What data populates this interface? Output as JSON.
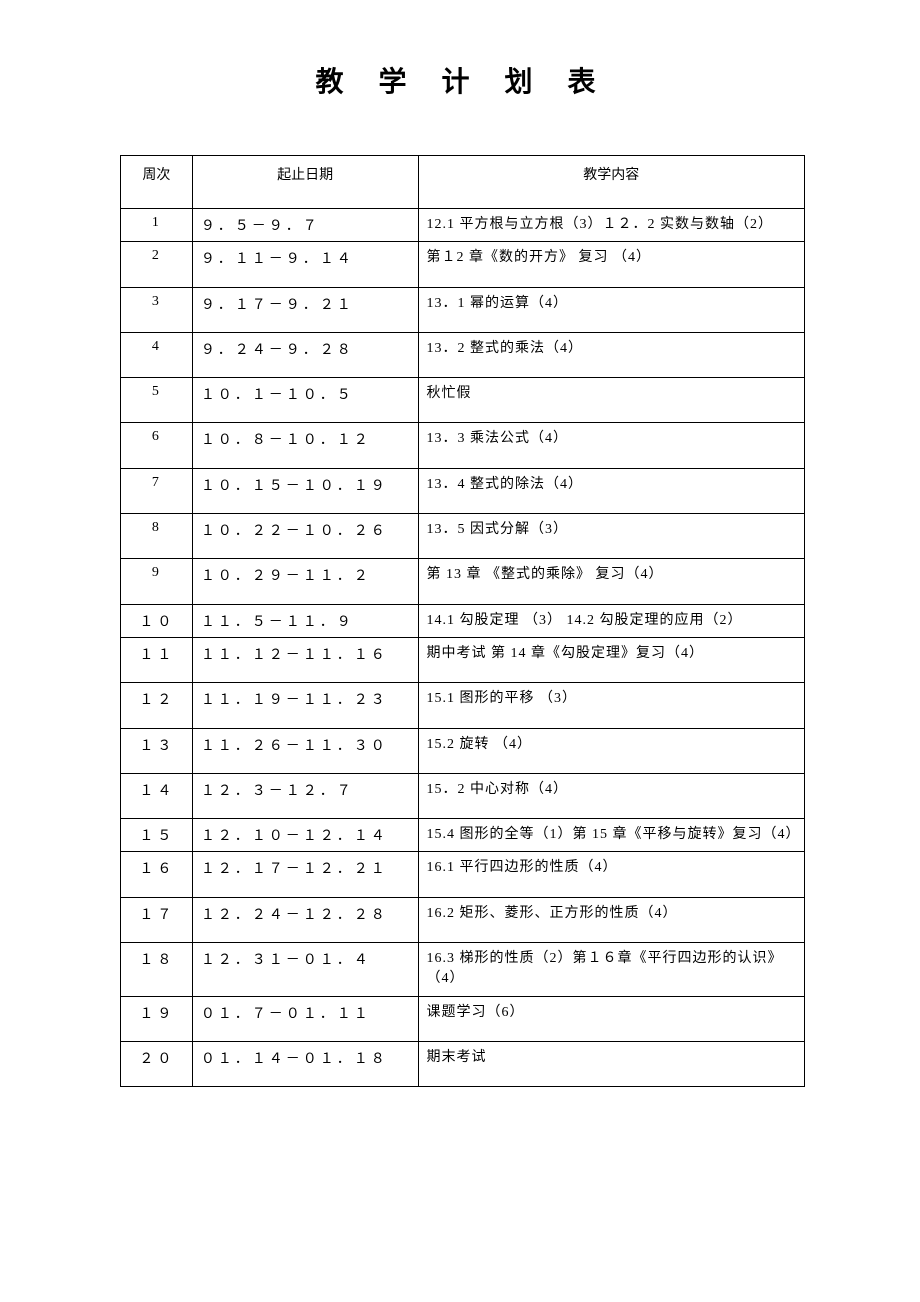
{
  "title": "教 学 计 划 表",
  "columns": [
    "周次",
    "起止日期",
    "教学内容"
  ],
  "rows": [
    {
      "week": "1",
      "date": "９．５－９．７",
      "content": "12.1 平方根与立方根（3）１２．2 实数与数轴（2）",
      "short": true
    },
    {
      "week": "2",
      "date": "９．１１－９．１４",
      "content": "第１2 章《数的开方》  复习 （4）",
      "short": false
    },
    {
      "week": "3",
      "date": "９．１７－９．２１",
      "content": "13．1  幂的运算（4）",
      "short": false
    },
    {
      "week": "4",
      "date": "９．２４－９．２８",
      "content": "13．2 整式的乘法（4）",
      "short": false
    },
    {
      "week": "5",
      "date": "１０．１－１０．５",
      "content": "秋忙假",
      "short": false
    },
    {
      "week": "6",
      "date": "１０．８－１０．１２",
      "content": "13．3  乘法公式（4）",
      "short": false
    },
    {
      "week": "7",
      "date": "１０．１５－１０．１９",
      "content": "13．4  整式的除法（4）",
      "short": false
    },
    {
      "week": "8",
      "date": "１０．２２－１０．２６",
      "content": "13．5  因式分解（3）",
      "short": false
    },
    {
      "week": "9",
      "date": "１０．２９－１１．２",
      "content": "第 13 章 《整式的乘除》 复习（4）",
      "short": false
    },
    {
      "week": "１０",
      "date": "１１．５－１１．９",
      "content": " 14.1 勾股定理 （3）  14.2 勾股定理的应用（2）",
      "short": true
    },
    {
      "week": "１１",
      "date": "１１．１２－１１．１６",
      "content": "期中考试  第 14 章《勾股定理》复习（4）",
      "short": false
    },
    {
      "week": "１２",
      "date": "１１．１９－１１．２３",
      "content": "15.1 图形的平移  （3）",
      "short": false
    },
    {
      "week": "１３",
      "date": "１１．２６－１１．３０",
      "content": "15.2 旋转 （4）",
      "short": false
    },
    {
      "week": "１４",
      "date": "１２．３－１２．７",
      "content": "15．2 中心对称（4）",
      "short": false
    },
    {
      "week": "１５",
      "date": "１２．１０－１２．１４",
      "content": "15.4 图形的全等（1）第 15 章《平移与旋转》复习（4）",
      "short": true
    },
    {
      "week": "１６",
      "date": "１２．１７－１２．２１",
      "content": "16.1 平行四边形的性质（4）",
      "short": false
    },
    {
      "week": "１７",
      "date": "１２．２４－１２．２８",
      "content": "16.2 矩形、菱形、正方形的性质（4）",
      "short": false
    },
    {
      "week": "１８",
      "date": "１２．３１－０１．４",
      "content": "16.3 梯形的性质（2）第１６章《平行四边形的认识》（4）",
      "short": true
    },
    {
      "week": "１９",
      "date": "０１．７－０１．１１",
      "content": "课题学习（6）",
      "short": false
    },
    {
      "week": "２０",
      "date": "０１．１４－０１．１８",
      "content": "期末考试",
      "short": false
    }
  ],
  "style": {
    "background_color": "#ffffff",
    "border_color": "#000000",
    "text_color": "#000000",
    "title_fontsize": 28,
    "cell_fontsize": 14,
    "font_family": "SimSun"
  }
}
